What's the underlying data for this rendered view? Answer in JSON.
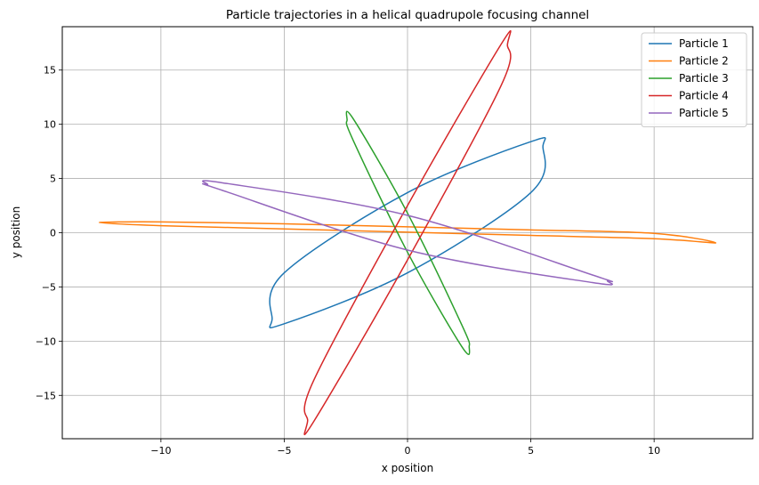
{
  "chart_data": {
    "type": "line",
    "title": "Particle trajectories in a helical quadrupole focusing channel",
    "xlabel": "x position",
    "ylabel": "y position",
    "xlim": [
      -14,
      14
    ],
    "ylim": [
      -19,
      19
    ],
    "xticks": [
      -10,
      -5,
      0,
      5,
      10
    ],
    "xtick_labels": [
      "−10",
      "−5",
      "0",
      "5",
      "10"
    ],
    "yticks": [
      -15,
      -10,
      -5,
      0,
      5,
      10,
      15
    ],
    "ytick_labels": [
      "−15",
      "−10",
      "−5",
      "0",
      "5",
      "10",
      "15"
    ],
    "grid": true,
    "legend_position": "top-right",
    "series": [
      {
        "name": "Particle 1",
        "color": "#1f77b4",
        "x": [
          5.49,
          5.0,
          0.0,
          -5.0,
          -5.49,
          -5.0,
          0.0,
          5.0,
          5.49
        ],
        "y": [
          7.92,
          8.4,
          3.7,
          -3.7,
          -7.92,
          -8.4,
          -3.7,
          3.7,
          7.92
        ]
      },
      {
        "name": "Particle 2",
        "color": "#ff7f0e",
        "x": [
          -12.5,
          -10.0,
          -5.0,
          0.0,
          5.0,
          10.0,
          12.5,
          10.0,
          5.0,
          0.0,
          -5.0,
          -10.0,
          -12.5
        ],
        "y": [
          0.93,
          1.0,
          0.82,
          0.54,
          0.26,
          -0.06,
          -0.93,
          -0.55,
          -0.25,
          0.05,
          0.35,
          0.65,
          0.93
        ]
      },
      {
        "name": "Particle 3",
        "color": "#2ca02c",
        "x": [
          -2.45,
          -2.2,
          0.0,
          2.2,
          2.5,
          2.2,
          0.0,
          -2.2,
          -2.45
        ],
        "y": [
          10.4,
          10.5,
          1.8,
          -8.5,
          -10.5,
          -10.5,
          -1.8,
          8.5,
          10.4
        ]
      },
      {
        "name": "Particle 4",
        "color": "#d62728",
        "x": [
          4.05,
          3.8,
          0.0,
          -3.8,
          -4.05,
          -3.8,
          0.0,
          3.8,
          4.05
        ],
        "y": [
          17.3,
          17.4,
          2.5,
          -13.6,
          -17.3,
          -17.4,
          -2.5,
          13.6,
          17.3
        ]
      },
      {
        "name": "Particle 5",
        "color": "#9467bd",
        "x": [
          -8.1,
          -7.5,
          0.0,
          7.5,
          8.1,
          7.5,
          0.0,
          -7.5,
          -8.1
        ],
        "y": [
          4.45,
          4.6,
          1.6,
          -3.9,
          -4.45,
          -4.6,
          -1.6,
          3.9,
          4.45
        ]
      }
    ]
  }
}
